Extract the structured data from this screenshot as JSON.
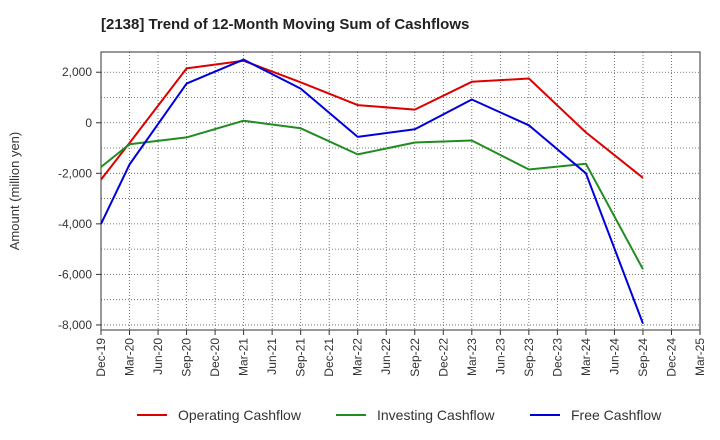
{
  "chart_data": {
    "type": "line",
    "title": "[2138]  Trend of 12-Month Moving Sum of Cashflows",
    "xlabel": "",
    "ylabel": "Amount (million yen)",
    "ylim": [
      -8200,
      2800
    ],
    "yticks": [
      2000,
      0,
      -2000,
      -4000,
      -6000,
      -8000
    ],
    "ytick_labels": [
      "2,000",
      "0",
      "-2,000",
      "-4,000",
      "-6,000",
      "-8,000"
    ],
    "categories": [
      "Dec-19",
      "Mar-20",
      "Jun-20",
      "Sep-20",
      "Dec-20",
      "Mar-21",
      "Jun-21",
      "Sep-21",
      "Dec-21",
      "Mar-22",
      "Jun-22",
      "Sep-22",
      "Dec-22",
      "Mar-23",
      "Jun-23",
      "Sep-23",
      "Dec-23",
      "Mar-24",
      "Jun-24",
      "Sep-24",
      "Dec-24",
      "Mar-25"
    ],
    "grid": true,
    "legend_position": "bottom",
    "series": [
      {
        "name": "Operating Cashflow",
        "color": "#dd0000",
        "values": [
          -2250,
          -800,
          null,
          2150,
          null,
          2450,
          null,
          1600,
          null,
          700,
          null,
          520,
          null,
          1620,
          null,
          1750,
          null,
          -380,
          null,
          -2180,
          null,
          null
        ]
      },
      {
        "name": "Investing Cashflow",
        "color": "#228b22",
        "values": [
          -1750,
          -850,
          null,
          -580,
          null,
          80,
          null,
          -220,
          null,
          -1250,
          null,
          -780,
          null,
          -700,
          null,
          -1850,
          null,
          -1620,
          null,
          -5800,
          null,
          null
        ]
      },
      {
        "name": "Free Cashflow",
        "color": "#0000dd",
        "values": [
          -4000,
          -1650,
          null,
          1550,
          null,
          2500,
          null,
          1350,
          null,
          -560,
          null,
          -260,
          null,
          920,
          null,
          -100,
          null,
          -2000,
          null,
          -7950,
          null,
          null
        ]
      }
    ]
  }
}
